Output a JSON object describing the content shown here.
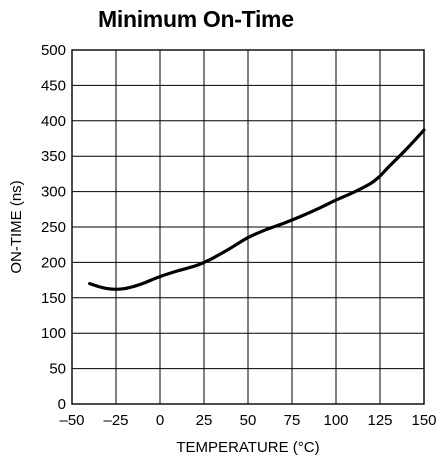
{
  "chart_data": {
    "type": "line",
    "title": "Minimum On-Time",
    "xlabel": "TEMPERATURE (°C)",
    "ylabel": "ON-TIME (ns)",
    "xlim": [
      -50,
      150
    ],
    "ylim": [
      0,
      500
    ],
    "x_ticks": [
      "–50",
      "–25",
      "0",
      "25",
      "50",
      "75",
      "100",
      "125",
      "150"
    ],
    "y_ticks": [
      "0",
      "50",
      "100",
      "150",
      "200",
      "250",
      "300",
      "350",
      "400",
      "450",
      "500"
    ],
    "grid": true,
    "series": [
      {
        "color": "#000000",
        "x": [
          -40,
          -35,
          -30,
          -25,
          -20,
          -15,
          -10,
          -5,
          0,
          10,
          20,
          25,
          30,
          40,
          50,
          60,
          70,
          80,
          90,
          100,
          110,
          120,
          125,
          130,
          140,
          150
        ],
        "y": [
          170,
          166,
          163,
          162,
          163,
          166,
          170,
          175,
          180,
          188,
          195,
          200,
          206,
          220,
          235,
          246,
          255,
          265,
          276,
          288,
          299,
          312,
          322,
          335,
          360,
          387
        ]
      }
    ]
  }
}
